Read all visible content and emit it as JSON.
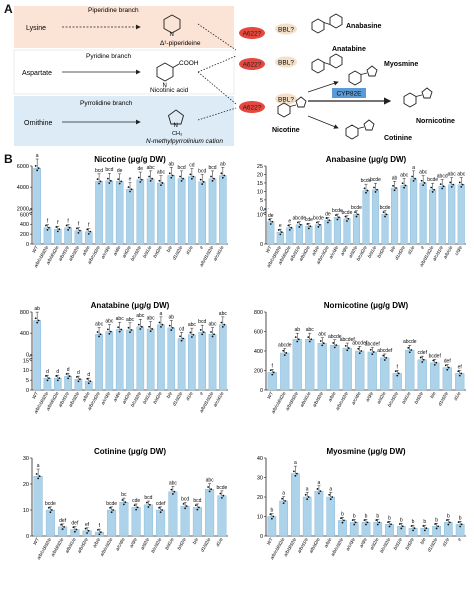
{
  "figure": {
    "panel_a_label": "A",
    "panel_b_label": "B"
  },
  "pathway": {
    "rows": [
      {
        "precursor": "Lysine",
        "branch": "Piperidine branch",
        "intermediate": "Δ¹-piperideine",
        "bg": "#fbe3d6"
      },
      {
        "precursor": "Aspartate",
        "branch": "Pyridine branch",
        "intermediate": "Nicotinic acid",
        "extra": "COOH",
        "bg": "#ffffff"
      },
      {
        "precursor": "Ornithine",
        "branch": "Pyrrolidine branch",
        "intermediate": "N-methylpyrrolinium cation",
        "extra": "CH₃",
        "bg": "#dcebf6"
      }
    ],
    "enzymes": {
      "a622": "A622?",
      "bbl": "BBL?",
      "cyp": "CYP82E"
    },
    "products": [
      "Anabasine",
      "Anatabine",
      "Myosmine",
      "Nicotine",
      "Nornicotine",
      "Cotinine"
    ],
    "atoms": {
      "N": "N",
      "H": "H",
      "CH3": "CH₃",
      "O": "O"
    },
    "enzyme_colors": {
      "a622": "#e4483f",
      "bbl": "#f4e0c8",
      "cyp": "#5b9bd5"
    }
  },
  "chart_data": [
    {
      "type": "bar",
      "title": "Nicotine (μg/g DW)",
      "ylim_low": [
        0,
        600
      ],
      "ylim_high": [
        2000,
        6000
      ],
      "ticks_low": [
        0,
        200,
        400,
        600
      ],
      "ticks_high": [
        2000,
        4000,
        6000
      ],
      "values": [
        5800,
        330,
        300,
        330,
        270,
        250,
        4550,
        4600,
        4550,
        3800,
        4700,
        4800,
        4400,
        5100,
        4800,
        5000,
        4500,
        4800,
        5100
      ],
      "letters": [
        "a",
        "f",
        "f",
        "f",
        "f",
        "f",
        "bcd",
        "bcd",
        "de",
        "e",
        "de",
        "abc",
        "abc",
        "ab",
        "bcd",
        "cd",
        "bcd",
        "bcd",
        "ab"
      ]
    },
    {
      "type": "bar",
      "title": "Anabasine (μg/g DW)",
      "ylim_low": [
        0,
        10
      ],
      "ylim_high": [
        0,
        25
      ],
      "ticks_low": [
        0,
        10
      ],
      "ticks_high": [
        0,
        5,
        10,
        15,
        20,
        25
      ],
      "values": [
        7.5,
        4,
        5.5,
        6.5,
        6,
        6.5,
        8,
        9,
        8.5,
        10,
        10.5,
        11,
        10,
        12,
        13.5,
        17.5,
        15,
        11,
        13,
        14,
        14
      ],
      "letters": [
        "de",
        "e",
        "e",
        "abcde",
        "cde",
        "bcde",
        "de",
        "bcde",
        "bcde",
        "bcde",
        "bcde",
        "bcde",
        "bcde",
        "ab",
        "abc",
        "a",
        "abc",
        "bcde",
        "abcd",
        "abc",
        "abc"
      ]
    },
    {
      "type": "bar",
      "title": "Anatabine (μg/g DW)",
      "ylim_low": [
        0,
        15
      ],
      "ylim_high": [
        0,
        800
      ],
      "ticks_low": [
        0,
        5,
        10,
        15
      ],
      "ticks_high": [
        0,
        400,
        800
      ],
      "values": [
        640,
        6,
        6,
        7,
        5.5,
        4.5,
        380,
        430,
        470,
        460,
        520,
        480,
        560,
        500,
        300,
        370,
        420,
        380,
        560
      ],
      "letters": [
        "ab",
        "d",
        "d",
        "d",
        "d",
        "d",
        "abc",
        "abc",
        "abc",
        "abc",
        "abc",
        "abc",
        "a",
        "ab",
        "cd",
        "abc",
        "bcd",
        "abc",
        "abc"
      ]
    },
    {
      "type": "bar",
      "title": "Nornicotine (μg/g DW)",
      "ylim": [
        0,
        800
      ],
      "ticks": [
        0,
        200,
        400,
        600,
        800
      ],
      "values": [
        180,
        380,
        520,
        520,
        480,
        460,
        430,
        400,
        390,
        330,
        170,
        410,
        310,
        280,
        230,
        170
      ],
      "letters": [
        "f",
        "abcde",
        "ab",
        "abc",
        "abc",
        "abcde",
        "abcdef",
        "abcdef",
        "abcdef",
        "abcdef",
        "f",
        "abcde",
        "cdef",
        "bcdef",
        "def",
        "ef"
      ]
    },
    {
      "type": "bar",
      "title": "Cotinine (μg/g DW)",
      "ylim": [
        0,
        30
      ],
      "ticks": [
        0,
        10,
        20,
        30
      ],
      "values": [
        23,
        10,
        3.5,
        2.5,
        2,
        1.5,
        10,
        13,
        11,
        12,
        10,
        17,
        11.5,
        11,
        18,
        15.5
      ],
      "letters": [
        "a",
        "bcde",
        "def",
        "def",
        "ef",
        "f",
        "bcde",
        "bc",
        "cde",
        "bcd",
        "cdef",
        "abc",
        "bcd",
        "bcd",
        "abc",
        "bcde"
      ]
    },
    {
      "type": "bar",
      "title": "Myosmine (μg/g DW)",
      "ylim": [
        0,
        40
      ],
      "ticks": [
        0,
        10,
        20,
        30,
        40
      ],
      "values": [
        10,
        18,
        32,
        20,
        23,
        20,
        8,
        7,
        7,
        7,
        6,
        5,
        4,
        4,
        5,
        7,
        6
      ],
      "letters": [
        "b",
        "a",
        "a",
        "a",
        "a",
        "a",
        "b",
        "b",
        "b",
        "b",
        "b",
        "b",
        "b",
        "b",
        "b",
        "b",
        "b"
      ]
    }
  ],
  "genotypes": [
    "WT",
    "a/b/c/d/d2/e",
    "a/b/d/d2/e",
    "a/b/d1/e",
    "a/b/d2/e",
    "a/b/e",
    "a/b/c/d2/e",
    "a/c/d/e",
    "a/d/e",
    "a/d2/e",
    "b/c/d2/e",
    "b/d1/e",
    "b/d2/e",
    "b/e",
    "d1/d2/e",
    "d1/e",
    "e",
    "a/b/d1/d2/e",
    "a/c/d1/e",
    "a/b/c/e",
    "c/d/e"
  ],
  "bar_color": "#add3ea"
}
